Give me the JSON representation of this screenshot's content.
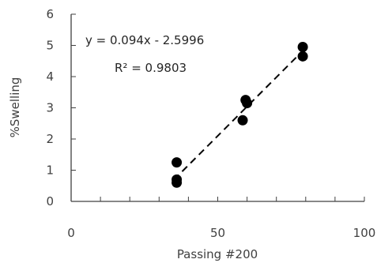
{
  "chart_data": {
    "type": "scatter",
    "title": "",
    "xlabel": "Passing #200",
    "ylabel": "%Swelling",
    "xlim": [
      0,
      100
    ],
    "ylim": [
      0,
      6
    ],
    "x_ticks": [
      "0",
      "50",
      "100"
    ],
    "y_ticks": [
      "0",
      "1",
      "2",
      "3",
      "4",
      "5",
      "6"
    ],
    "grid": false,
    "legend": "none",
    "point_color": "#000000",
    "series": [
      {
        "points": [
          {
            "x": 36,
            "y": 0.6
          },
          {
            "x": 36,
            "y": 0.7
          },
          {
            "x": 36,
            "y": 1.25
          },
          {
            "x": 58.5,
            "y": 2.6
          },
          {
            "x": 59.5,
            "y": 3.25
          },
          {
            "x": 60,
            "y": 3.15
          },
          {
            "x": 79,
            "y": 4.95
          },
          {
            "x": 79,
            "y": 4.65
          }
        ]
      }
    ],
    "trendline": {
      "style": "dashed",
      "color": "#000000",
      "slope": 0.094,
      "intercept": -2.5996,
      "x_range": [
        35,
        78
      ]
    },
    "annotations": {
      "equation": "y = 0.094x - 2.5996",
      "r_squared": "R² = 0.9803"
    }
  }
}
